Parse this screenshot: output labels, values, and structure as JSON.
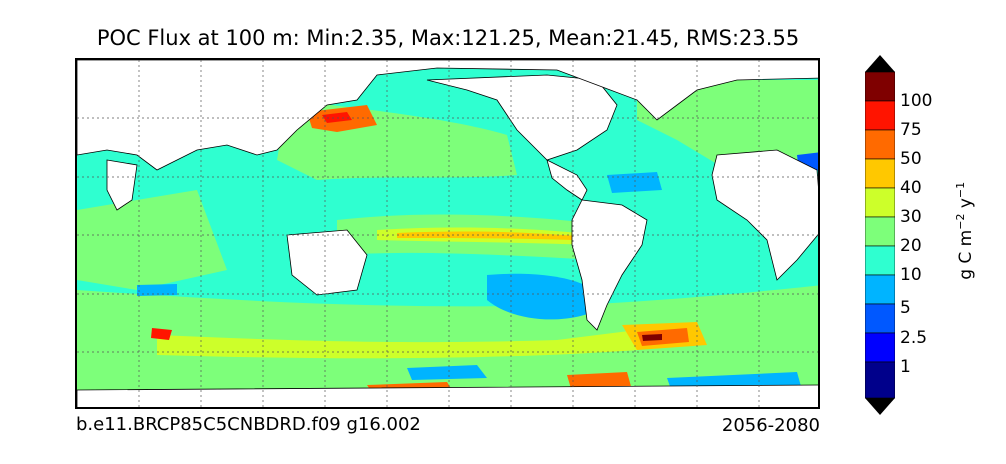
{
  "title": "POC Flux at 100 m: Min:2.35, Max:121.25, Mean:21.45, RMS:23.55",
  "run_id": "b.e11.BRCP85C5CNBDRD.f09 g16.002",
  "period": "2056-2080",
  "colorbar": {
    "units_prefix": "g C m",
    "units_exp1": "−2",
    "units_mid": " y",
    "units_exp2": "−1",
    "levels": [
      {
        "label": "100",
        "color": "#7f0000"
      },
      {
        "label": "75",
        "color": "#ff1400"
      },
      {
        "label": "50",
        "color": "#ff6a00"
      },
      {
        "label": "40",
        "color": "#ffc800"
      },
      {
        "label": "30",
        "color": "#cdff2a"
      },
      {
        "label": "20",
        "color": "#7dff7a"
      },
      {
        "label": "10",
        "color": "#2fffd0"
      },
      {
        "label": "5",
        "color": "#00b4ff"
      },
      {
        "label": "2.5",
        "color": "#0058ff"
      },
      {
        "label": "1",
        "color": "#0000ff"
      }
    ],
    "over_color": "#000000",
    "under_color": "#000000",
    "lowest_color": "#00008b"
  },
  "map": {
    "land_color": "#ffffff",
    "grid": true,
    "projection": "cylindrical"
  }
}
